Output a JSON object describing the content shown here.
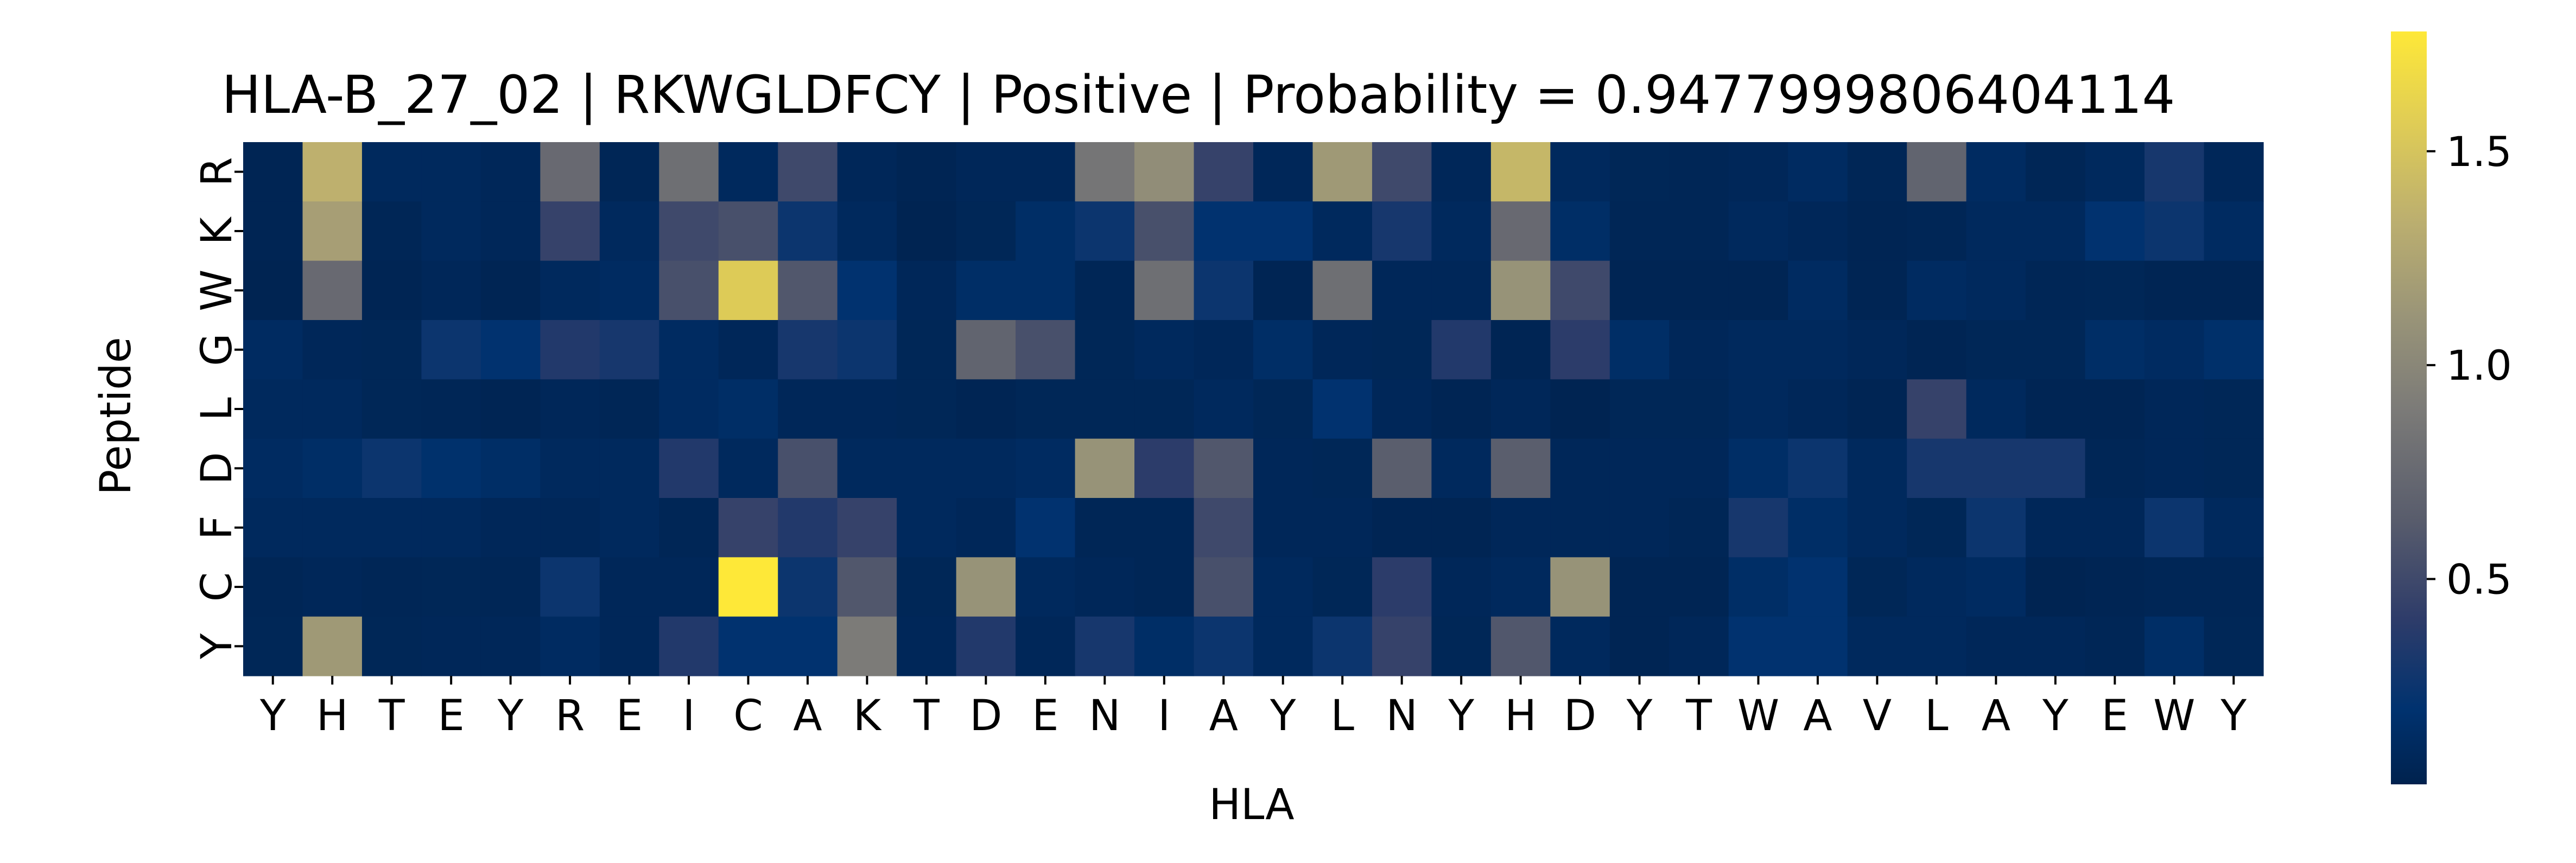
{
  "chart_data": {
    "type": "heatmap",
    "title": "HLA-B_27_02 | RKWGLDFCY | Positive | Probability = 0.9477999806404114",
    "xlabel": "HLA",
    "ylabel": "Peptide",
    "x_categories": [
      "Y",
      "H",
      "T",
      "E",
      "Y",
      "R",
      "E",
      "I",
      "C",
      "A",
      "K",
      "T",
      "D",
      "E",
      "N",
      "I",
      "A",
      "Y",
      "L",
      "N",
      "Y",
      "H",
      "D",
      "Y",
      "T",
      "W",
      "A",
      "V",
      "L",
      "A",
      "Y",
      "E",
      "W",
      "Y"
    ],
    "y_categories": [
      "R",
      "K",
      "W",
      "G",
      "L",
      "D",
      "F",
      "C",
      "Y"
    ],
    "colormap": "cividis",
    "colors": {
      "low": "#00224e",
      "mid": "#7c7b78",
      "high": "#fee838"
    },
    "value_range": [
      0.02,
      1.78
    ],
    "colorbar_ticks": [
      {
        "value": 0.5,
        "label": "0.5"
      },
      {
        "value": 1.0,
        "label": "1.0"
      },
      {
        "value": 1.5,
        "label": "1.5"
      }
    ],
    "values": [
      [
        0.05,
        1.35,
        0.1,
        0.1,
        0.08,
        0.75,
        0.06,
        0.8,
        0.1,
        0.5,
        0.08,
        0.05,
        0.08,
        0.08,
        0.85,
        1.05,
        0.45,
        0.08,
        1.15,
        0.5,
        0.08,
        1.4,
        0.1,
        0.07,
        0.06,
        0.08,
        0.12,
        0.06,
        0.7,
        0.12,
        0.06,
        0.1,
        0.3,
        0.08
      ],
      [
        0.05,
        1.2,
        0.06,
        0.1,
        0.08,
        0.45,
        0.1,
        0.5,
        0.55,
        0.25,
        0.1,
        0.04,
        0.07,
        0.15,
        0.25,
        0.55,
        0.2,
        0.2,
        0.1,
        0.3,
        0.1,
        0.75,
        0.15,
        0.06,
        0.06,
        0.1,
        0.08,
        0.05,
        0.06,
        0.1,
        0.1,
        0.2,
        0.25,
        0.12
      ],
      [
        0.04,
        0.75,
        0.05,
        0.08,
        0.05,
        0.1,
        0.12,
        0.55,
        1.55,
        0.6,
        0.2,
        0.08,
        0.15,
        0.15,
        0.06,
        0.8,
        0.25,
        0.05,
        0.8,
        0.08,
        0.08,
        1.1,
        0.5,
        0.05,
        0.05,
        0.05,
        0.12,
        0.05,
        0.12,
        0.1,
        0.06,
        0.07,
        0.05,
        0.05
      ],
      [
        0.12,
        0.08,
        0.07,
        0.25,
        0.2,
        0.35,
        0.3,
        0.12,
        0.08,
        0.3,
        0.25,
        0.07,
        0.7,
        0.55,
        0.07,
        0.1,
        0.08,
        0.15,
        0.08,
        0.07,
        0.35,
        0.05,
        0.4,
        0.15,
        0.08,
        0.1,
        0.1,
        0.08,
        0.05,
        0.07,
        0.07,
        0.15,
        0.12,
        0.17
      ],
      [
        0.1,
        0.1,
        0.07,
        0.06,
        0.05,
        0.08,
        0.06,
        0.12,
        0.15,
        0.08,
        0.08,
        0.07,
        0.05,
        0.07,
        0.07,
        0.07,
        0.1,
        0.07,
        0.2,
        0.08,
        0.05,
        0.08,
        0.04,
        0.07,
        0.07,
        0.1,
        0.08,
        0.05,
        0.45,
        0.1,
        0.05,
        0.05,
        0.08,
        0.07
      ],
      [
        0.12,
        0.15,
        0.25,
        0.18,
        0.15,
        0.1,
        0.1,
        0.35,
        0.1,
        0.55,
        0.1,
        0.1,
        0.1,
        0.12,
        1.1,
        0.4,
        0.6,
        0.08,
        0.07,
        0.65,
        0.1,
        0.65,
        0.08,
        0.08,
        0.08,
        0.15,
        0.25,
        0.1,
        0.3,
        0.3,
        0.3,
        0.06,
        0.08,
        0.07
      ],
      [
        0.1,
        0.1,
        0.1,
        0.1,
        0.08,
        0.08,
        0.1,
        0.06,
        0.45,
        0.35,
        0.45,
        0.1,
        0.08,
        0.2,
        0.06,
        0.06,
        0.5,
        0.08,
        0.08,
        0.05,
        0.05,
        0.08,
        0.08,
        0.08,
        0.06,
        0.3,
        0.15,
        0.1,
        0.07,
        0.25,
        0.08,
        0.08,
        0.25,
        0.1
      ],
      [
        0.06,
        0.08,
        0.06,
        0.07,
        0.06,
        0.25,
        0.08,
        0.08,
        1.78,
        0.25,
        0.6,
        0.07,
        1.1,
        0.1,
        0.08,
        0.06,
        0.55,
        0.1,
        0.07,
        0.4,
        0.08,
        0.1,
        1.1,
        0.05,
        0.05,
        0.15,
        0.2,
        0.07,
        0.1,
        0.12,
        0.04,
        0.05,
        0.06,
        0.06
      ],
      [
        0.07,
        1.15,
        0.07,
        0.08,
        0.08,
        0.12,
        0.08,
        0.35,
        0.2,
        0.2,
        0.9,
        0.08,
        0.35,
        0.08,
        0.3,
        0.15,
        0.25,
        0.1,
        0.25,
        0.45,
        0.07,
        0.6,
        0.1,
        0.05,
        0.08,
        0.2,
        0.2,
        0.1,
        0.1,
        0.08,
        0.08,
        0.06,
        0.15,
        0.07
      ]
    ]
  }
}
